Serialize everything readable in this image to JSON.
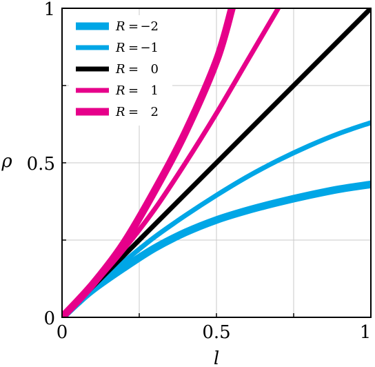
{
  "chart_data": {
    "type": "line",
    "xlabel": "l",
    "ylabel": "ρ",
    "xlim": [
      0,
      1
    ],
    "ylim": [
      0,
      1
    ],
    "grid": true,
    "legend_position": "top-left",
    "x_ticks": [
      "0",
      "0.5",
      "1"
    ],
    "y_ticks": [
      "0",
      "0.5",
      "1"
    ],
    "series": [
      {
        "name": "R = −2",
        "color": "#00a6e6",
        "weight": "thick",
        "x": [
          0,
          0.05,
          0.1,
          0.2,
          0.3,
          0.4,
          0.5,
          0.6,
          0.7,
          0.8,
          0.9,
          1.0
        ],
        "y": [
          0,
          0.047,
          0.09,
          0.16,
          0.224,
          0.275,
          0.315,
          0.346,
          0.372,
          0.395,
          0.415,
          0.43
        ]
      },
      {
        "name": "R = −1",
        "color": "#00a6e6",
        "weight": "medium",
        "x": [
          0,
          0.05,
          0.1,
          0.2,
          0.3,
          0.4,
          0.5,
          0.6,
          0.7,
          0.8,
          0.9,
          1.0
        ],
        "y": [
          0,
          0.049,
          0.096,
          0.18,
          0.26,
          0.33,
          0.395,
          0.455,
          0.508,
          0.555,
          0.596,
          0.63
        ]
      },
      {
        "name": "R = 0",
        "color": "#000000",
        "weight": "medium",
        "x": [
          0,
          1
        ],
        "y": [
          0,
          1
        ]
      },
      {
        "name": "R = 1",
        "color": "#e6008a",
        "weight": "medium",
        "x": [
          0,
          0.1,
          0.2,
          0.3,
          0.4,
          0.5,
          0.6,
          0.7
        ],
        "y": [
          0,
          0.104,
          0.22,
          0.35,
          0.5,
          0.66,
          0.83,
          1.0
        ]
      },
      {
        "name": "R = 2",
        "color": "#e6008a",
        "weight": "thick",
        "x": [
          0,
          0.1,
          0.2,
          0.3,
          0.4,
          0.5,
          0.55
        ],
        "y": [
          0,
          0.108,
          0.24,
          0.41,
          0.6,
          0.83,
          1.0
        ]
      }
    ]
  },
  "legend": [
    {
      "lhs": "R",
      "eq": "=",
      "rhs": "−2"
    },
    {
      "lhs": "R",
      "eq": "=",
      "rhs": "−1"
    },
    {
      "lhs": "R",
      "eq": "=",
      "rhs": "0"
    },
    {
      "lhs": "R",
      "eq": "=",
      "rhs": "1"
    },
    {
      "lhs": "R",
      "eq": "=",
      "rhs": "2"
    }
  ]
}
